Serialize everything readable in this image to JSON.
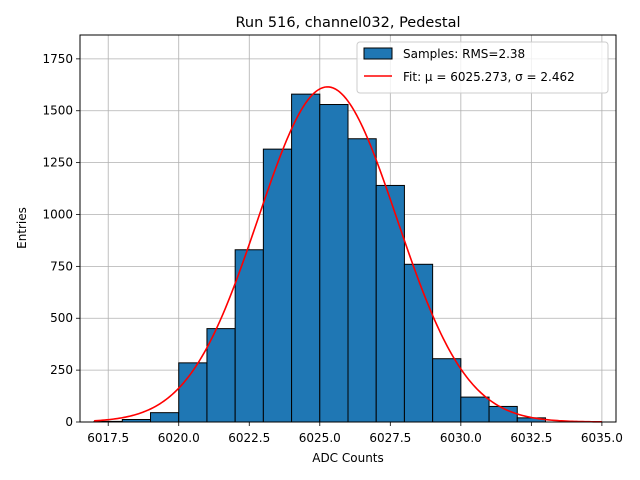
{
  "chart_data": {
    "type": "bar",
    "title": "Run 516, channel032, Pedestal",
    "xlabel": "ADC Counts",
    "ylabel": "Entries",
    "xlim": [
      6016.5,
      6035.5
    ],
    "ylim": [
      0,
      1865
    ],
    "grid": true,
    "legend_position": "top-right",
    "xticks": [
      "6017.5",
      "6020.0",
      "6022.5",
      "6025.0",
      "6027.5",
      "6030.0",
      "6032.5",
      "6035.0"
    ],
    "yticks": [
      "0",
      "250",
      "500",
      "750",
      "1000",
      "1250",
      "1500",
      "1750"
    ],
    "bin_edges": [
      6017,
      6018,
      6019,
      6020,
      6021,
      6022,
      6023,
      6024,
      6025,
      6026,
      6027,
      6028,
      6029,
      6030,
      6031,
      6032,
      6033
    ],
    "series": [
      {
        "name": "Samples: RMS=2.38",
        "style": "histogram",
        "color": "#1f77b4",
        "values": [
          3,
          12,
          45,
          285,
          450,
          830,
          1315,
          1580,
          1530,
          1365,
          1140,
          760,
          305,
          120,
          75,
          20
        ]
      },
      {
        "name": "Fit: μ = 6025.273, σ = 2.462",
        "style": "gaussian_fit",
        "color": "#ff0000",
        "mu": 6025.273,
        "sigma": 2.462,
        "amplitude": 1615,
        "x_range": [
          6017,
          6035
        ]
      }
    ]
  }
}
